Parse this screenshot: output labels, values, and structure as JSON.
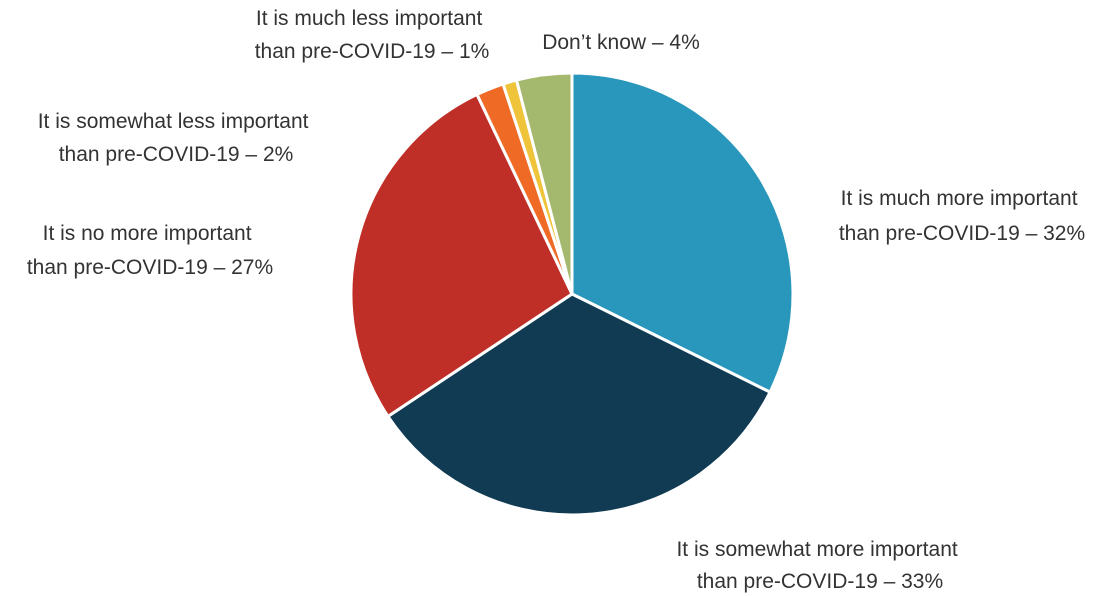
{
  "chart_data": {
    "type": "pie",
    "start_angle_deg": 0,
    "direction": "clockwise",
    "slices": [
      {
        "label_lines": [
          "It is much more important",
          "than pre-COVID-19 – 32%"
        ],
        "value": 32,
        "color": "#2897bb"
      },
      {
        "label_lines": [
          "It is somewhat more important",
          "than pre-COVID-19 – 33%"
        ],
        "value": 33,
        "color": "#113a53"
      },
      {
        "label_lines": [
          "It is no more important",
          "than pre-COVID-19 – 27%"
        ],
        "value": 27,
        "color": "#bf2f27"
      },
      {
        "label_lines": [
          "It is somewhat less important",
          "than pre-COVID-19 – 2%"
        ],
        "value": 2,
        "color": "#ef6a25"
      },
      {
        "label_lines": [
          "It is much less important",
          "than pre-COVID-19 – 1%"
        ],
        "value": 1,
        "color": "#efc43a"
      },
      {
        "label_lines": [
          "Don’t know – 4%"
        ],
        "value": 4,
        "color": "#a4b86e"
      }
    ]
  }
}
